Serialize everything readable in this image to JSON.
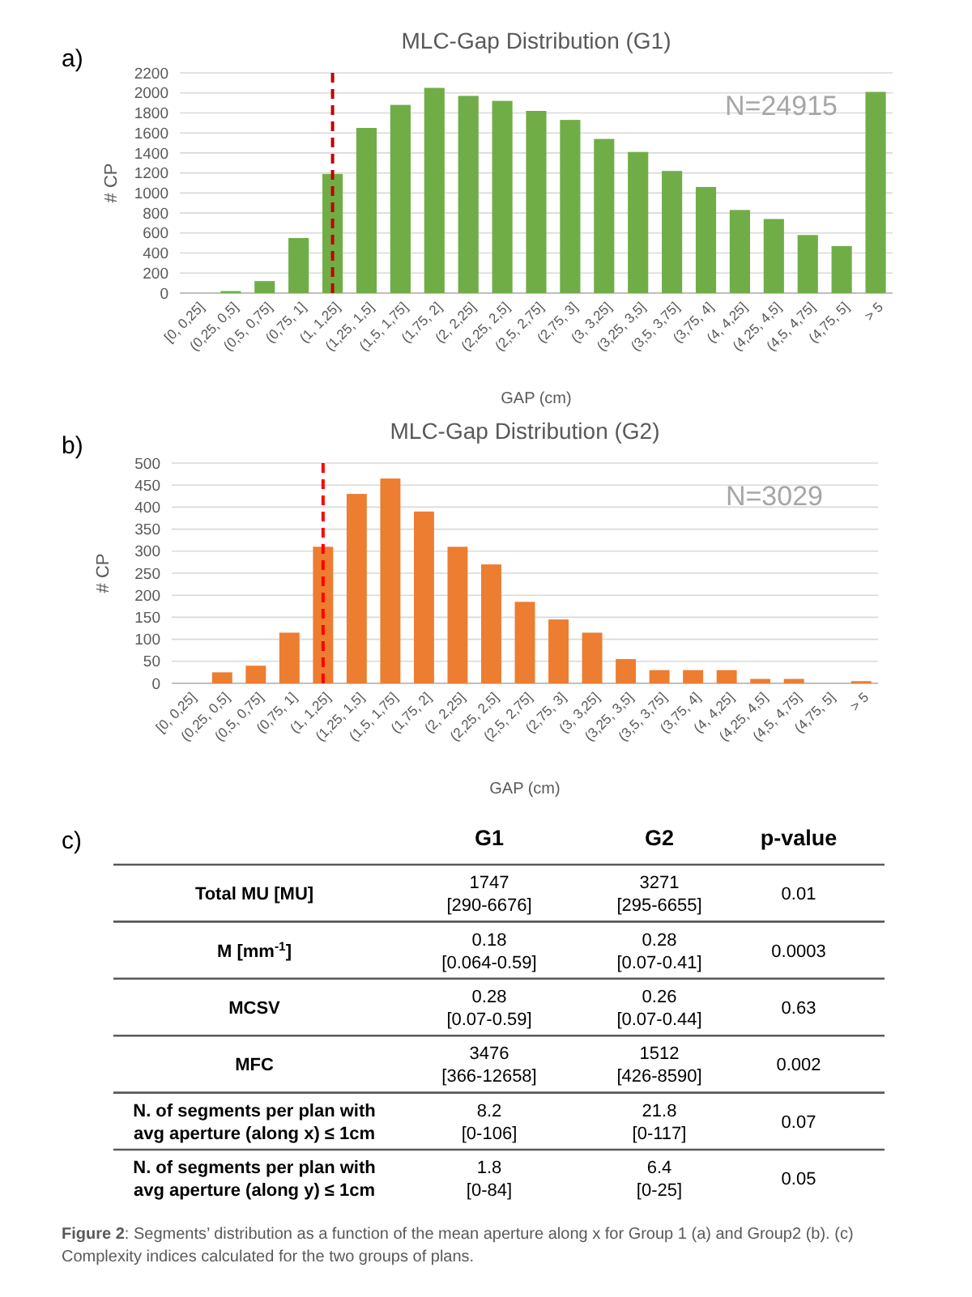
{
  "chart_data": [
    {
      "type": "bar",
      "title": "MLC-Gap Distribution (G1)",
      "xlabel": "GAP (cm)",
      "ylabel": "# CP",
      "categories": [
        "[0, 0,25]",
        "(0,25, 0,5]",
        "(0,5, 0,75]",
        "(0,75, 1]",
        "(1, 1,25]",
        "(1,25, 1,5]",
        "(1,5, 1,75]",
        "(1,75, 2]",
        "(2, 2,25]",
        "(2,25, 2,5]",
        "(2,5, 2,75]",
        "(2,75, 3]",
        "(3, 3,25]",
        "(3,25, 3,5]",
        "(3,5, 3,75]",
        "(3,75, 4]",
        "(4, 4,25]",
        "(4,25, 4,5]",
        "(4,5, 4,75]",
        "(4,75, 5]",
        "> 5"
      ],
      "values": [
        0,
        20,
        120,
        550,
        1190,
        1650,
        1880,
        2050,
        1970,
        1920,
        1820,
        1730,
        1540,
        1410,
        1220,
        1060,
        830,
        740,
        580,
        470,
        2010
      ],
      "color": "#70ad47",
      "ylim": [
        0,
        2200
      ],
      "yticks": [
        0,
        200,
        400,
        600,
        800,
        1000,
        1200,
        1400,
        1600,
        1800,
        2000,
        2200
      ],
      "grid": "y",
      "ref_lines": [
        {
          "axis": "x",
          "value": "(1, 1,25]",
          "color": "#c00000",
          "line_style": "dashed"
        }
      ],
      "annotations": [
        "a)",
        "N=24915"
      ]
    },
    {
      "type": "bar",
      "title": "MLC-Gap Distribution (G2)",
      "xlabel": "GAP (cm)",
      "ylabel": "# CP",
      "categories": [
        "[0, 0,25]",
        "(0,25, 0,5]",
        "(0,5, 0,75]",
        "(0,75, 1]",
        "(1, 1,25]",
        "(1,25, 1,5]",
        "(1,5, 1,75]",
        "(1,75, 2]",
        "(2, 2,25]",
        "(2,25, 2,5]",
        "(2,5, 2,75]",
        "(2,75, 3]",
        "(3, 3,25]",
        "(3,25, 3,5]",
        "(3,5, 3,75]",
        "(3,75, 4]",
        "(4, 4,25]",
        "(4,25, 4,5]",
        "(4,5, 4,75]",
        "(4,75, 5]",
        "> 5"
      ],
      "values": [
        0,
        25,
        40,
        115,
        310,
        430,
        465,
        390,
        310,
        270,
        185,
        145,
        115,
        55,
        30,
        30,
        30,
        10,
        10,
        0,
        5
      ],
      "color": "#ed7d31",
      "ylim": [
        0,
        500
      ],
      "yticks": [
        0,
        50,
        100,
        150,
        200,
        250,
        300,
        350,
        400,
        450,
        500
      ],
      "grid": "y",
      "ref_lines": [
        {
          "axis": "x",
          "value": "(1, 1,25]",
          "color": "#ff0000",
          "line_style": "dashed"
        }
      ],
      "annotations": [
        "b)",
        "N=3029"
      ]
    },
    {
      "type": "other",
      "categories": [
        "G1",
        "G2",
        "p-value"
      ],
      "y_categories": [
        "Total MU [MU]",
        "M [mm$^{-1}$]",
        "MCSV",
        "MFC",
        "N. of segments per plan with avg aperture (along x) ≤ 1cm",
        "N. of segments per plan with avg aperture (along y) ≤ 1cm"
      ],
      "cell_labels": [
        [
          "1747\n[290-6676]",
          "3271\n[295-6655]",
          "0.01"
        ],
        [
          "0.18\n[0.064-0.59]",
          "0.28\n[0.07-0.41]",
          "0.0003"
        ],
        [
          "0.28\n[0.07-0.59]",
          "0.26\n[0.07-0.44]",
          "0.63"
        ],
        [
          "3476\n[366-12658]",
          "1512\n[426-8590]",
          "0.002"
        ],
        [
          "8.2\n[0-106]",
          "21.8\n[0-117]",
          "0.07"
        ],
        [
          "1.8\n[0-84]",
          "6.4\n[0-25]",
          "0.05"
        ]
      ],
      "annotations": [
        "c)",
        "Figure 2: Segments’ distribution as a function of the mean aperture along x for Group 1 (a) and Group2 (b). (c) Complexity indices calculated for the two groups of plans."
      ]
    }
  ]
}
